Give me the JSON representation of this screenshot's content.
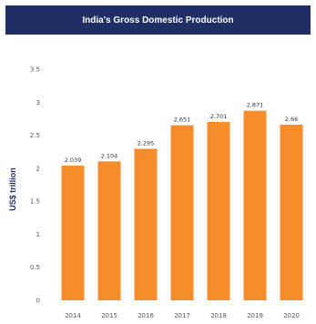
{
  "chart_data": {
    "type": "bar",
    "title": "India's Gross Domestic Production",
    "xlabel": "",
    "ylabel": "US$ trillion",
    "categories": [
      "2014",
      "2015",
      "2016",
      "2017",
      "2018",
      "2019",
      "2020"
    ],
    "values": [
      2.039,
      2.104,
      2.295,
      2.651,
      2.701,
      2.871,
      2.66
    ],
    "value_labels": [
      "2.039",
      "2.104",
      "2.295",
      "2.651",
      "2.701",
      "2.871",
      "2.66"
    ],
    "ylim": [
      0,
      3.5
    ],
    "yticks": [
      "0",
      "0.5",
      "1",
      "1.5",
      "2",
      "2.5",
      "3",
      "3.5"
    ],
    "grid": false,
    "legend": "none",
    "colors": {
      "bar": "#f58d2a",
      "title_bg": "#1f2f66",
      "title_text": "#ffffff",
      "axis_title": "#1f2f66"
    }
  }
}
